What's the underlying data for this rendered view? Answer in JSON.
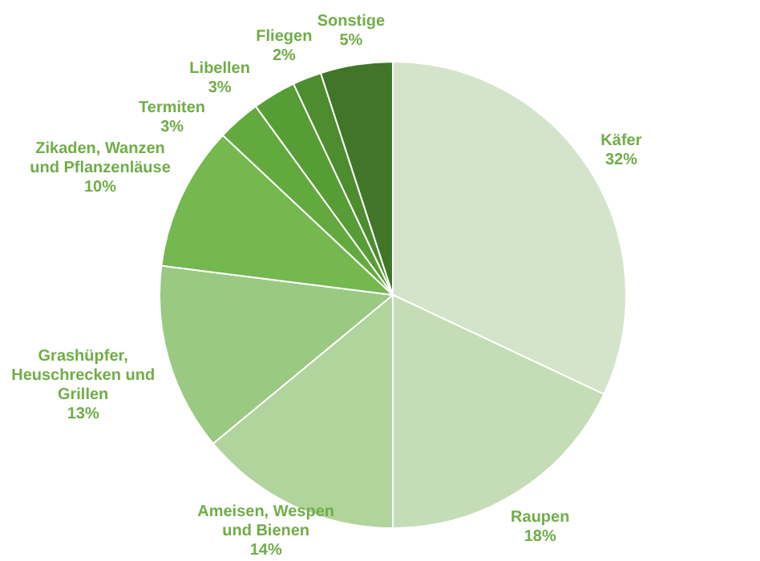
{
  "chart_data": {
    "type": "pie",
    "categories": [
      "Käfer",
      "Raupen",
      "Ameisen, Wespen und Bienen",
      "Grashüpfer, Heuschrecken und Grillen",
      "Zikaden, Wanzen und Pflanzenläuse",
      "Termiten",
      "Libellen",
      "Fliegen",
      "Sonstige"
    ],
    "values": [
      32,
      18,
      14,
      13,
      10,
      3,
      3,
      2,
      5
    ],
    "value_labels": [
      "32%",
      "18%",
      "14%",
      "13%",
      "10%",
      "3%",
      "3%",
      "2%",
      "5%"
    ],
    "colors": [
      "#d3e4ca",
      "#c4ddb6",
      "#b1d49d",
      "#9ac982",
      "#74b84f",
      "#63aa3e",
      "#579d35",
      "#4d8c2f",
      "#417628"
    ],
    "legend": false
  }
}
